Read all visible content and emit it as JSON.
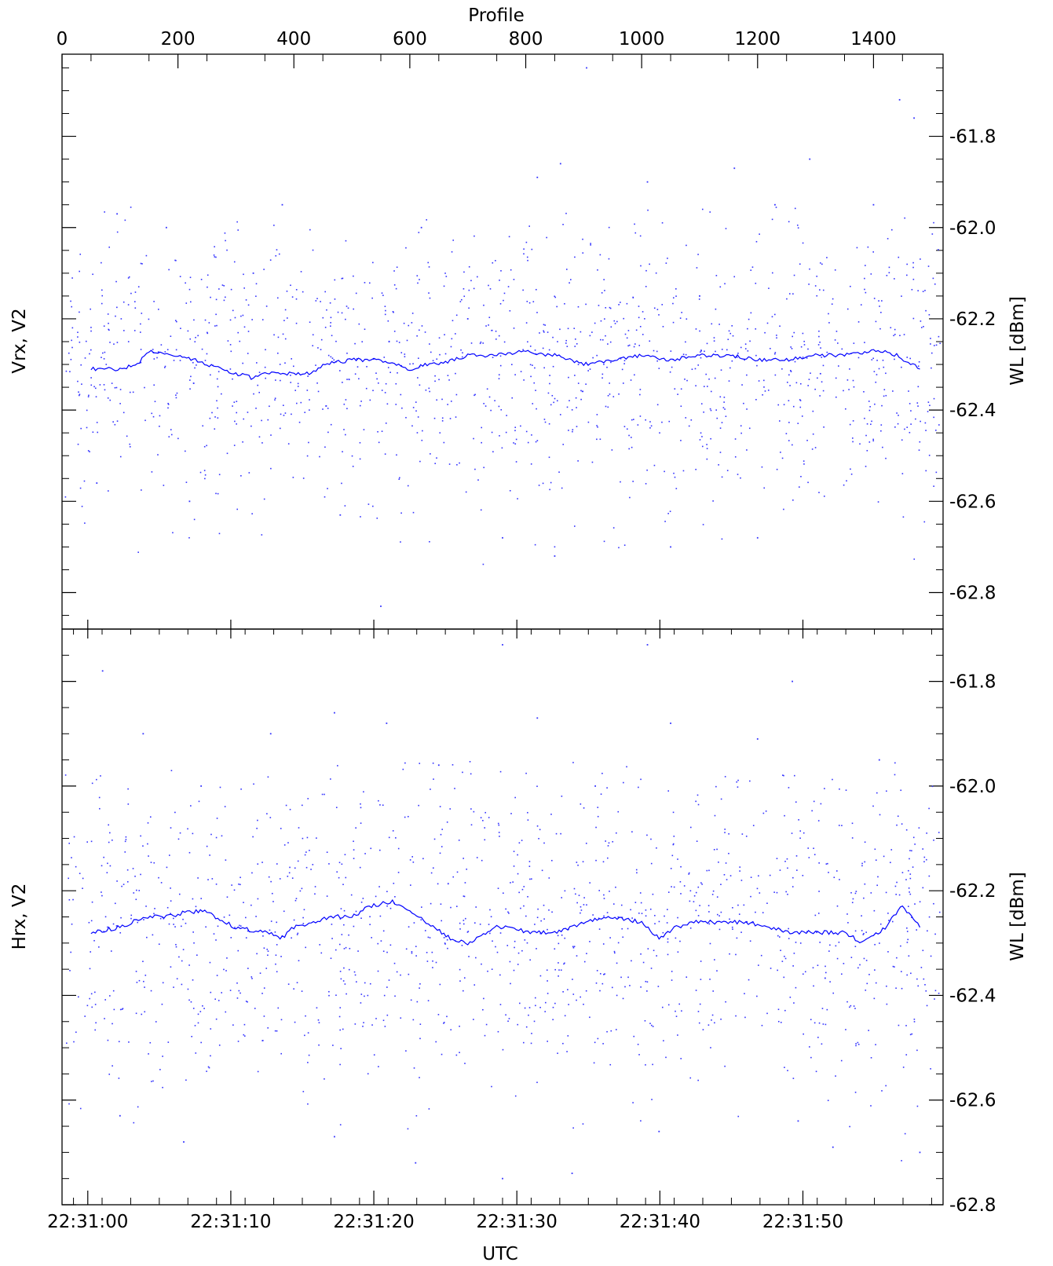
{
  "chart_data": {
    "type": "scatter",
    "top_axis": {
      "label": "Profile",
      "ticks": [
        0,
        200,
        400,
        600,
        800,
        1000,
        1200,
        1400
      ],
      "range": [
        0,
        1520
      ]
    },
    "bottom_axis": {
      "label": "UTC",
      "ticks": [
        "22:31:00",
        "22:31:10",
        "22:31:20",
        "22:31:30",
        "22:31:40",
        "22:31:50"
      ],
      "tick_seconds": [
        0,
        10,
        20,
        30,
        40,
        50
      ],
      "range_seconds": [
        -1.8,
        59.8
      ]
    },
    "panels": [
      {
        "name": "Vrx, V2",
        "ylabel_left": "Vrx, V2",
        "ylabel_right": "WL [dBm]",
        "ylim": [
          -62.88,
          -61.62
        ],
        "yticks": [
          "-61.8",
          "-62.0",
          "-62.2",
          "-62.4",
          "-62.6",
          "-62.8"
        ],
        "ytick_values": [
          -61.8,
          -62.0,
          -62.2,
          -62.4,
          -62.6,
          -62.8
        ],
        "series": [
          {
            "name": "",
            "kind": "line",
            "x": [
              50,
              100,
              130,
              150,
              200,
              230,
              250,
              300,
              330,
              350,
              400,
              430,
              450,
              500,
              530,
              550,
              600,
              630,
              650,
              700,
              730,
              750,
              800,
              830,
              850,
              880,
              900,
              950,
              1000,
              1050,
              1100,
              1120,
              1150,
              1200,
              1250,
              1300,
              1350,
              1400,
              1420,
              1440,
              1480
            ],
            "y": [
              -62.31,
              -62.31,
              -62.3,
              -62.27,
              -62.28,
              -62.29,
              -62.3,
              -62.32,
              -62.33,
              -62.32,
              -62.32,
              -62.32,
              -62.3,
              -62.29,
              -62.29,
              -62.29,
              -62.31,
              -62.3,
              -62.3,
              -62.28,
              -62.28,
              -62.28,
              -62.27,
              -62.28,
              -62.28,
              -62.29,
              -62.3,
              -62.29,
              -62.28,
              -62.29,
              -62.28,
              -62.28,
              -62.28,
              -62.29,
              -62.29,
              -62.28,
              -62.28,
              -62.27,
              -62.27,
              -62.28,
              -62.31
            ]
          },
          {
            "name": "",
            "kind": "points",
            "points": [
              [
                905,
                -61.65
              ],
              [
                1445,
                -61.72
              ],
              [
                1470,
                -61.76
              ],
              [
                860,
                -61.86
              ],
              [
                1010,
                -61.9
              ],
              [
                1160,
                -61.87
              ],
              [
                95,
                -61.97
              ],
              [
                1230,
                -61.95
              ],
              [
                1290,
                -61.85
              ],
              [
                380,
                -61.95
              ],
              [
                820,
                -61.89
              ],
              [
                180,
                -62.0
              ],
              [
                620,
                -62.0
              ],
              [
                1400,
                -61.95
              ],
              [
                700,
                -62.2
              ],
              [
                330,
                -62.1
              ],
              [
                1100,
                -62.15
              ],
              [
                220,
                -62.6
              ],
              [
                480,
                -62.63
              ],
              [
                850,
                -62.72
              ],
              [
                1200,
                -62.68
              ],
              [
                550,
                -62.83
              ],
              [
                760,
                -62.68
              ],
              [
                1050,
                -62.7
              ],
              [
                60,
                -62.56
              ]
            ],
            "scatter_band": [
              -62.75,
              -61.95
            ],
            "density_center": -62.3
          }
        ]
      },
      {
        "name": "Hrx, V2",
        "ylabel_left": "Hrx, V2",
        "ylabel_right": "WL [dBm]",
        "ylim": [
          -62.8,
          -61.7
        ],
        "yticks": [
          "-61.8",
          "-62.0",
          "-62.2",
          "-62.4",
          "-62.6",
          "-62.8"
        ],
        "ytick_values": [
          -61.8,
          -62.0,
          -62.2,
          -62.4,
          -62.6,
          -62.8
        ],
        "series": [
          {
            "name": "",
            "kind": "line",
            "x": [
              50,
              100,
              140,
              180,
              220,
              250,
              280,
              300,
              350,
              380,
              400,
              430,
              460,
              500,
              530,
              570,
              600,
              640,
              670,
              700,
              750,
              780,
              800,
              850,
              880,
              900,
              950,
              1000,
              1030,
              1060,
              1090,
              1130,
              1180,
              1220,
              1260,
              1300,
              1350,
              1380,
              1420,
              1450,
              1480
            ],
            "y": [
              -62.28,
              -62.27,
              -62.25,
              -62.25,
              -62.24,
              -62.24,
              -62.26,
              -62.27,
              -62.28,
              -62.29,
              -62.27,
              -62.26,
              -62.25,
              -62.25,
              -62.23,
              -62.22,
              -62.24,
              -62.27,
              -62.29,
              -62.3,
              -62.27,
              -62.27,
              -62.28,
              -62.28,
              -62.27,
              -62.26,
              -62.25,
              -62.26,
              -62.29,
              -62.27,
              -62.26,
              -62.26,
              -62.26,
              -62.27,
              -62.28,
              -62.28,
              -62.28,
              -62.3,
              -62.27,
              -62.23,
              -62.27
            ]
          },
          {
            "name": "",
            "kind": "points",
            "points": [
              [
                760,
                -61.73
              ],
              [
                1010,
                -61.73
              ],
              [
                1260,
                -61.8
              ],
              [
                70,
                -61.78
              ],
              [
                560,
                -61.88
              ],
              [
                1050,
                -61.88
              ],
              [
                470,
                -61.86
              ],
              [
                820,
                -61.87
              ],
              [
                1200,
                -61.91
              ],
              [
                140,
                -61.9
              ],
              [
                360,
                -61.9
              ],
              [
                650,
                -61.96
              ],
              [
                1410,
                -61.95
              ],
              [
                920,
                -62.0
              ],
              [
                240,
                -62.0
              ],
              [
                610,
                -62.72
              ],
              [
                210,
                -62.68
              ],
              [
                470,
                -62.67
              ],
              [
                1030,
                -62.66
              ],
              [
                1330,
                -62.69
              ],
              [
                760,
                -62.75
              ],
              [
                880,
                -62.74
              ],
              [
                1480,
                -62.7
              ],
              [
                100,
                -62.63
              ],
              [
                1270,
                -62.64
              ]
            ],
            "scatter_band": [
              -62.72,
              -61.95
            ],
            "density_center": -62.27
          }
        ]
      }
    ],
    "colors": {
      "data": "#0000ff",
      "axes": "#000000",
      "background": "#ffffff"
    },
    "grid": false,
    "legend": "none"
  }
}
